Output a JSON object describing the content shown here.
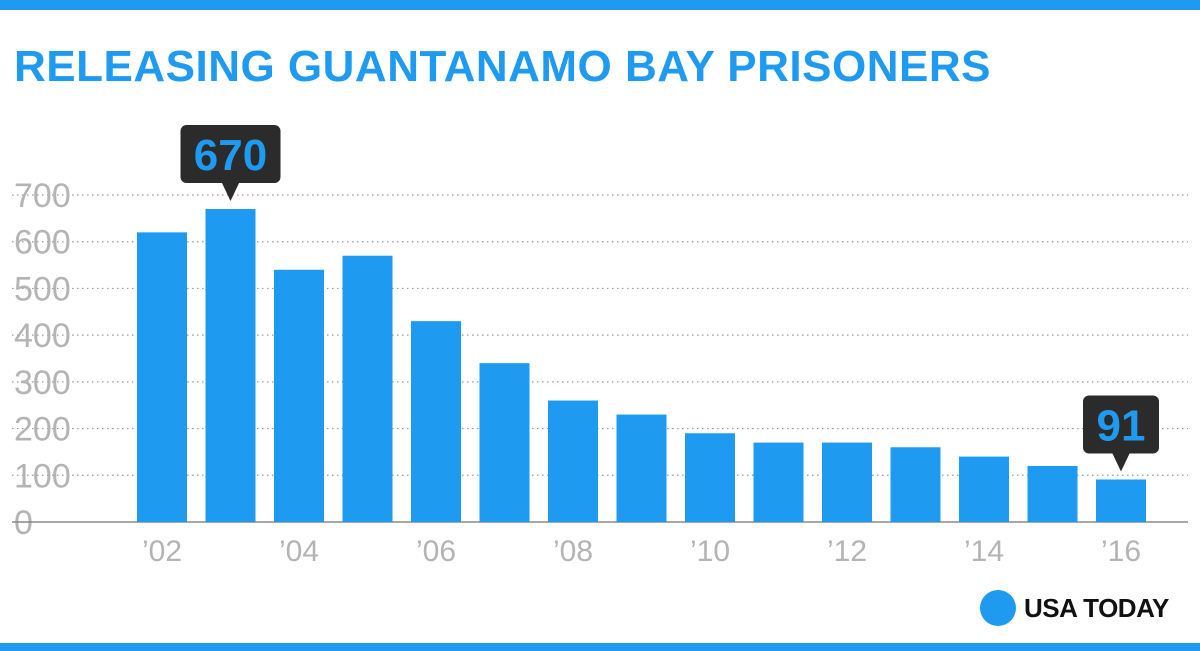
{
  "title": "RELEASING GUANTANAMO BAY PRISONERS",
  "brand": {
    "name": "USA TODAY",
    "icon": "brand-dot-icon"
  },
  "colors": {
    "bar": "#1e9bf0",
    "callout_bg": "#2b2b2b",
    "tick": "#b4b4b4",
    "grid": "#9a9a9a"
  },
  "chart_data": {
    "type": "bar",
    "categories": [
      "2002",
      "2003",
      "2004",
      "2005",
      "2006",
      "2007",
      "2008",
      "2009",
      "2010",
      "2011",
      "2012",
      "2013",
      "2014",
      "2015",
      "2016"
    ],
    "x_tick_labels": [
      "’02",
      "",
      "’04",
      "",
      "’06",
      "",
      "’08",
      "",
      "’10",
      "",
      "’12",
      "",
      "’14",
      "",
      "’16"
    ],
    "values": [
      620,
      670,
      540,
      570,
      430,
      340,
      260,
      230,
      190,
      170,
      170,
      160,
      140,
      120,
      91
    ],
    "ylim": [
      0,
      700
    ],
    "y_ticks": [
      0,
      100,
      200,
      300,
      400,
      500,
      600,
      700
    ],
    "grid": true,
    "callouts": [
      {
        "category": "2003",
        "label": "670"
      },
      {
        "category": "2016",
        "label": "91"
      }
    ]
  }
}
